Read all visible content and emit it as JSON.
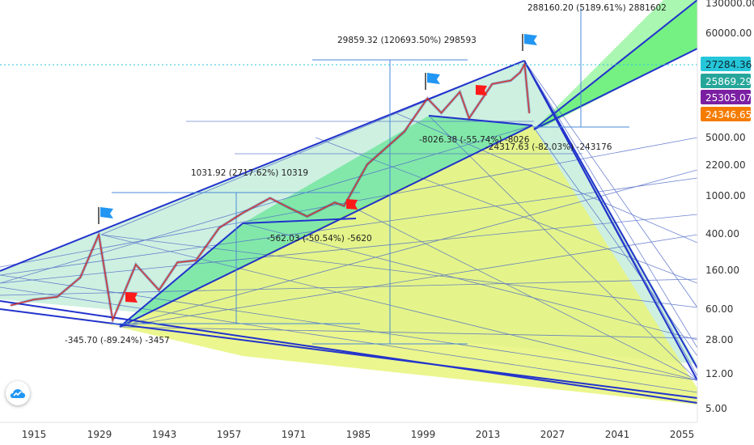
{
  "chart_data": {
    "type": "line",
    "title": "",
    "xlabel": "",
    "ylabel": "",
    "scale": "log",
    "x_ticks": [
      "1915",
      "1929",
      "1943",
      "1957",
      "1971",
      "1985",
      "1999",
      "2013",
      "2027",
      "2041",
      "2055"
    ],
    "y_ticks": [
      "130000.00",
      "60000.00",
      "27284.36",
      "25869.29",
      "25305.07",
      "24346.65",
      "5000.00",
      "2200.00",
      "1000.00",
      "400.00",
      "160.00",
      "60.00",
      "28.00",
      "12.00",
      "5.00"
    ],
    "y_tick_values": [
      130000,
      60000,
      5000,
      2200,
      1000,
      400,
      160,
      60,
      28,
      12,
      5
    ],
    "price_labels": [
      {
        "text": "27284.36",
        "value": 27284.36,
        "color": "#26c6da"
      },
      {
        "text": "25869.29",
        "value": 25869.29,
        "color": "#26a69a"
      },
      {
        "text": "25305.07",
        "value": 25305.07,
        "color": "#7b1fa2"
      },
      {
        "text": "24346.65",
        "value": 24346.65,
        "color": "#f57c00"
      }
    ],
    "series": [
      {
        "values_note": "",
        "x": [
          1910,
          1915,
          1920,
          1925,
          1929,
          1932,
          1937,
          1942,
          1946,
          1950,
          1955,
          1960,
          1966,
          1970,
          1974,
          1980,
          1982,
          1987,
          1995,
          2000,
          2003,
          2007,
          2009,
          2014,
          2018,
          2020,
          2021,
          2022
        ],
        "y": [
          65,
          75,
          80,
          130,
          380,
          45,
          180,
          95,
          190,
          200,
          450,
          650,
          950,
          750,
          600,
          850,
          780,
          2200,
          5000,
          11500,
          8000,
          13500,
          7000,
          16500,
          18000,
          22000,
          27000,
          8000
        ]
      }
    ],
    "annotations": [
      {
        "text": "288160.20 (5189.61%) 2881602"
      },
      {
        "text": "29859.32 (120693.50%) 298593"
      },
      {
        "text": "1031.92 (2717.62%) 10319"
      },
      {
        "text": "-562.03 (-50.54%) -5620"
      },
      {
        "text": "-345.70 (-89.24%) -3457"
      },
      {
        "text": "-8026.38 (-55.74%) -8026"
      },
      {
        "text": "-24317.63 (-82.03%) -243176"
      }
    ]
  }
}
